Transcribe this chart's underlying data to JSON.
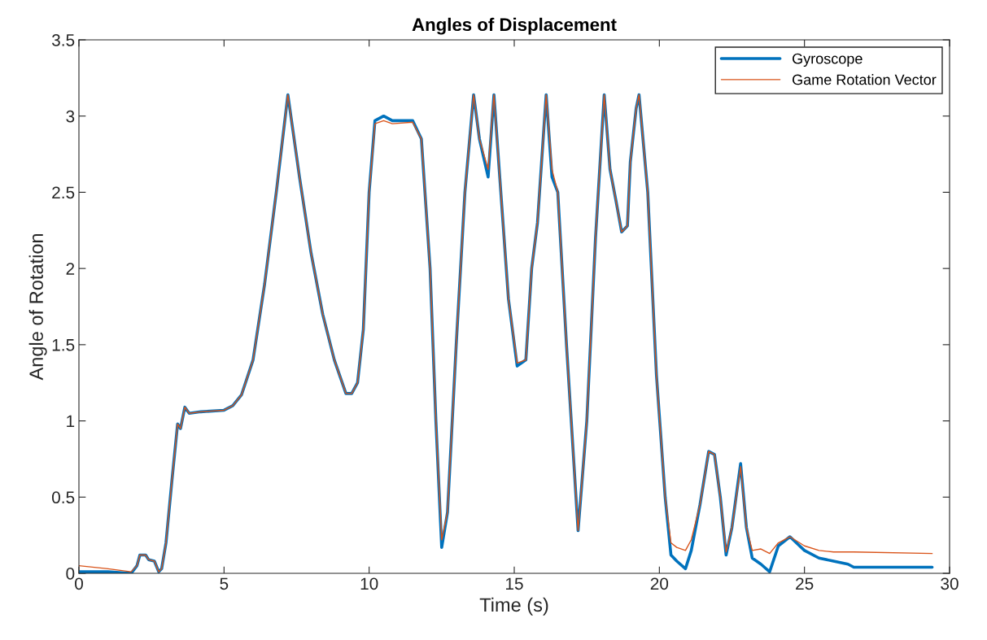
{
  "chart_data": {
    "type": "line",
    "title": "Angles of Displacement",
    "xlabel": "Time (s)",
    "ylabel": "Angle of Rotation",
    "x": [
      0,
      1,
      1.8,
      2.0,
      2.1,
      2.3,
      2.4,
      2.6,
      2.75,
      2.85,
      3.0,
      3.2,
      3.4,
      3.5,
      3.65,
      3.8,
      4.2,
      5.0,
      5.3,
      5.6,
      6.0,
      6.4,
      6.8,
      7.2,
      7.6,
      8.0,
      8.4,
      8.8,
      9.2,
      9.4,
      9.6,
      9.8,
      10.0,
      10.2,
      10.5,
      10.8,
      11.5,
      11.8,
      12.1,
      12.3,
      12.5,
      12.7,
      13.0,
      13.3,
      13.6,
      13.8,
      14.1,
      14.3,
      14.5,
      14.8,
      15.1,
      15.4,
      15.6,
      15.8,
      16.1,
      16.3,
      16.5,
      16.8,
      17.2,
      17.5,
      17.8,
      18.1,
      18.3,
      18.5,
      18.7,
      18.9,
      19.0,
      19.2,
      19.3,
      19.6,
      19.9,
      20.2,
      20.4,
      20.6,
      20.9,
      21.1,
      21.4,
      21.7,
      21.9,
      22.1,
      22.3,
      22.5,
      22.8,
      23.0,
      23.2,
      23.5,
      23.8,
      24.1,
      24.5,
      25.0,
      25.5,
      26.0,
      26.5,
      26.7,
      29.4
    ],
    "series": [
      {
        "name": "Gyroscope",
        "color": "#0072bd",
        "values": [
          0.01,
          0.01,
          0.0,
          0.05,
          0.12,
          0.12,
          0.09,
          0.08,
          0.01,
          0.03,
          0.2,
          0.6,
          0.98,
          0.95,
          1.09,
          1.05,
          1.06,
          1.07,
          1.1,
          1.17,
          1.4,
          1.9,
          2.5,
          3.14,
          2.6,
          2.1,
          1.7,
          1.4,
          1.18,
          1.18,
          1.25,
          1.6,
          2.5,
          2.97,
          3.0,
          2.97,
          2.97,
          2.85,
          2.0,
          1.0,
          0.17,
          0.4,
          1.5,
          2.5,
          3.14,
          2.85,
          2.6,
          3.14,
          2.6,
          1.8,
          1.36,
          1.4,
          2.0,
          2.3,
          3.14,
          2.6,
          2.5,
          1.5,
          0.28,
          1.0,
          2.2,
          3.14,
          2.65,
          2.45,
          2.24,
          2.28,
          2.7,
          3.05,
          3.14,
          2.5,
          1.3,
          0.5,
          0.12,
          0.08,
          0.03,
          0.15,
          0.45,
          0.8,
          0.78,
          0.5,
          0.12,
          0.3,
          0.72,
          0.3,
          0.1,
          0.06,
          0.01,
          0.18,
          0.24,
          0.15,
          0.1,
          0.08,
          0.06,
          0.04,
          0.04
        ]
      },
      {
        "name": "Game Rotation Vector",
        "color": "#d95319",
        "values": [
          0.05,
          0.03,
          0.01,
          0.05,
          0.12,
          0.12,
          0.09,
          0.08,
          0.01,
          0.03,
          0.2,
          0.6,
          0.98,
          0.95,
          1.09,
          1.05,
          1.06,
          1.07,
          1.1,
          1.17,
          1.4,
          1.9,
          2.5,
          3.14,
          2.6,
          2.1,
          1.7,
          1.4,
          1.18,
          1.18,
          1.25,
          1.6,
          2.5,
          2.95,
          2.97,
          2.95,
          2.96,
          2.85,
          2.0,
          1.0,
          0.22,
          0.4,
          1.5,
          2.5,
          3.14,
          2.85,
          2.65,
          3.14,
          2.6,
          1.8,
          1.38,
          1.4,
          2.0,
          2.3,
          3.14,
          2.65,
          2.5,
          1.5,
          0.28,
          1.0,
          2.2,
          3.14,
          2.65,
          2.45,
          2.24,
          2.28,
          2.7,
          3.05,
          3.14,
          2.5,
          1.3,
          0.5,
          0.2,
          0.17,
          0.15,
          0.22,
          0.45,
          0.8,
          0.78,
          0.5,
          0.14,
          0.3,
          0.7,
          0.3,
          0.15,
          0.16,
          0.13,
          0.2,
          0.24,
          0.18,
          0.15,
          0.14,
          0.14,
          0.14,
          0.13
        ]
      }
    ],
    "xlim": [
      0,
      30
    ],
    "xticks": [
      0,
      5,
      10,
      15,
      20,
      25,
      30
    ],
    "ylim": [
      0,
      3.5
    ],
    "yticks": [
      0,
      0.5,
      1,
      1.5,
      2,
      2.5,
      3,
      3.5
    ],
    "grid": false,
    "legend": "top right"
  }
}
